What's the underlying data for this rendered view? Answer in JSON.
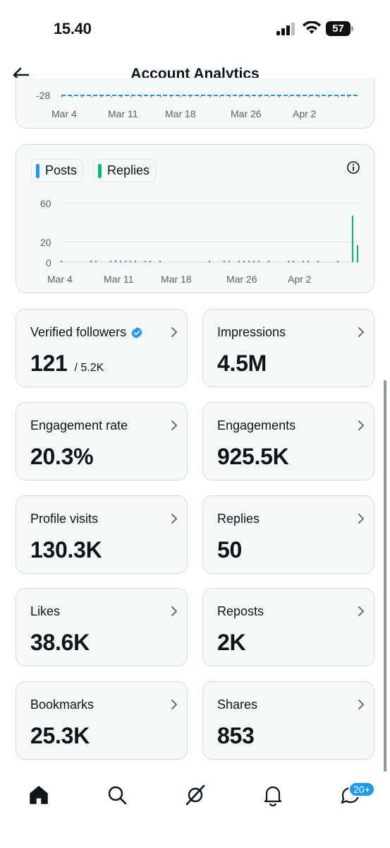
{
  "status": {
    "time": "15.40",
    "battery": "57"
  },
  "header": {
    "title": "Account Analytics"
  },
  "chart1": {
    "ytick": "-28",
    "xticks": [
      "Mar 4",
      "Mar 11",
      "Mar 18",
      "Mar 26",
      "Apr 2"
    ]
  },
  "chart2": {
    "legend": [
      {
        "label": "Posts",
        "color": "#1d9bf0"
      },
      {
        "label": "Replies",
        "color": "#00ba7c"
      }
    ],
    "yticks": [
      "60",
      "20",
      "0"
    ],
    "xticks": [
      "Mar 4",
      "Mar 11",
      "Mar 18",
      "Mar 26",
      "Apr 2"
    ]
  },
  "chart_data": [
    {
      "type": "line",
      "x": [
        "Mar 4",
        "Mar 11",
        "Mar 18",
        "Mar 26",
        "Apr 2"
      ],
      "yticks": [
        -28
      ],
      "series": []
    },
    {
      "type": "bar",
      "ylim": [
        0,
        60
      ],
      "yticks": [
        0,
        20,
        60
      ],
      "xticks": [
        "Mar 4",
        "Mar 11",
        "Mar 18",
        "Mar 26",
        "Apr 2"
      ],
      "legend": "top-left",
      "series": [
        {
          "name": "Posts",
          "color": "#1d9bf0",
          "values": [
            1,
            0,
            0,
            0,
            0,
            0,
            2,
            1,
            0,
            0,
            1,
            2,
            1,
            1,
            1,
            1,
            0,
            1,
            1,
            0,
            1,
            0,
            0,
            0,
            0,
            0,
            0,
            0,
            0,
            0,
            1,
            0,
            0,
            1,
            1,
            0,
            1,
            1,
            1,
            1,
            1,
            0,
            1,
            0,
            0,
            0,
            1,
            1,
            0,
            1,
            1,
            0,
            1,
            0,
            0,
            0,
            1,
            0,
            0,
            1,
            1
          ]
        },
        {
          "name": "Replies",
          "color": "#00ba7c",
          "values": [
            0,
            0,
            0,
            0,
            0,
            0,
            0,
            0,
            0,
            0,
            0,
            0,
            0,
            0,
            0,
            0,
            0,
            0,
            0,
            0,
            0,
            0,
            0,
            0,
            0,
            0,
            0,
            0,
            0,
            0,
            0,
            0,
            0,
            0,
            0,
            0,
            0,
            0,
            0,
            0,
            0,
            0,
            0,
            0,
            0,
            0,
            0,
            0,
            0,
            0,
            0,
            0,
            0,
            0,
            0,
            0,
            0,
            0,
            0,
            47,
            17
          ]
        }
      ]
    }
  ],
  "stats": [
    {
      "label": "Verified followers",
      "value": "121",
      "sub": "/ 5.2K",
      "verified": true
    },
    {
      "label": "Impressions",
      "value": "4.5M"
    },
    {
      "label": "Engagement rate",
      "value": "20.3%"
    },
    {
      "label": "Engagements",
      "value": "925.5K"
    },
    {
      "label": "Profile visits",
      "value": "130.3K"
    },
    {
      "label": "Replies",
      "value": "50"
    },
    {
      "label": "Likes",
      "value": "38.6K"
    },
    {
      "label": "Reposts",
      "value": "2K"
    },
    {
      "label": "Bookmarks",
      "value": "25.3K"
    },
    {
      "label": "Shares",
      "value": "853"
    }
  ],
  "tabbar": {
    "items": [
      "home-icon",
      "search-icon",
      "grok-icon",
      "notifications-icon",
      "messages-icon"
    ],
    "badge": "20+"
  }
}
